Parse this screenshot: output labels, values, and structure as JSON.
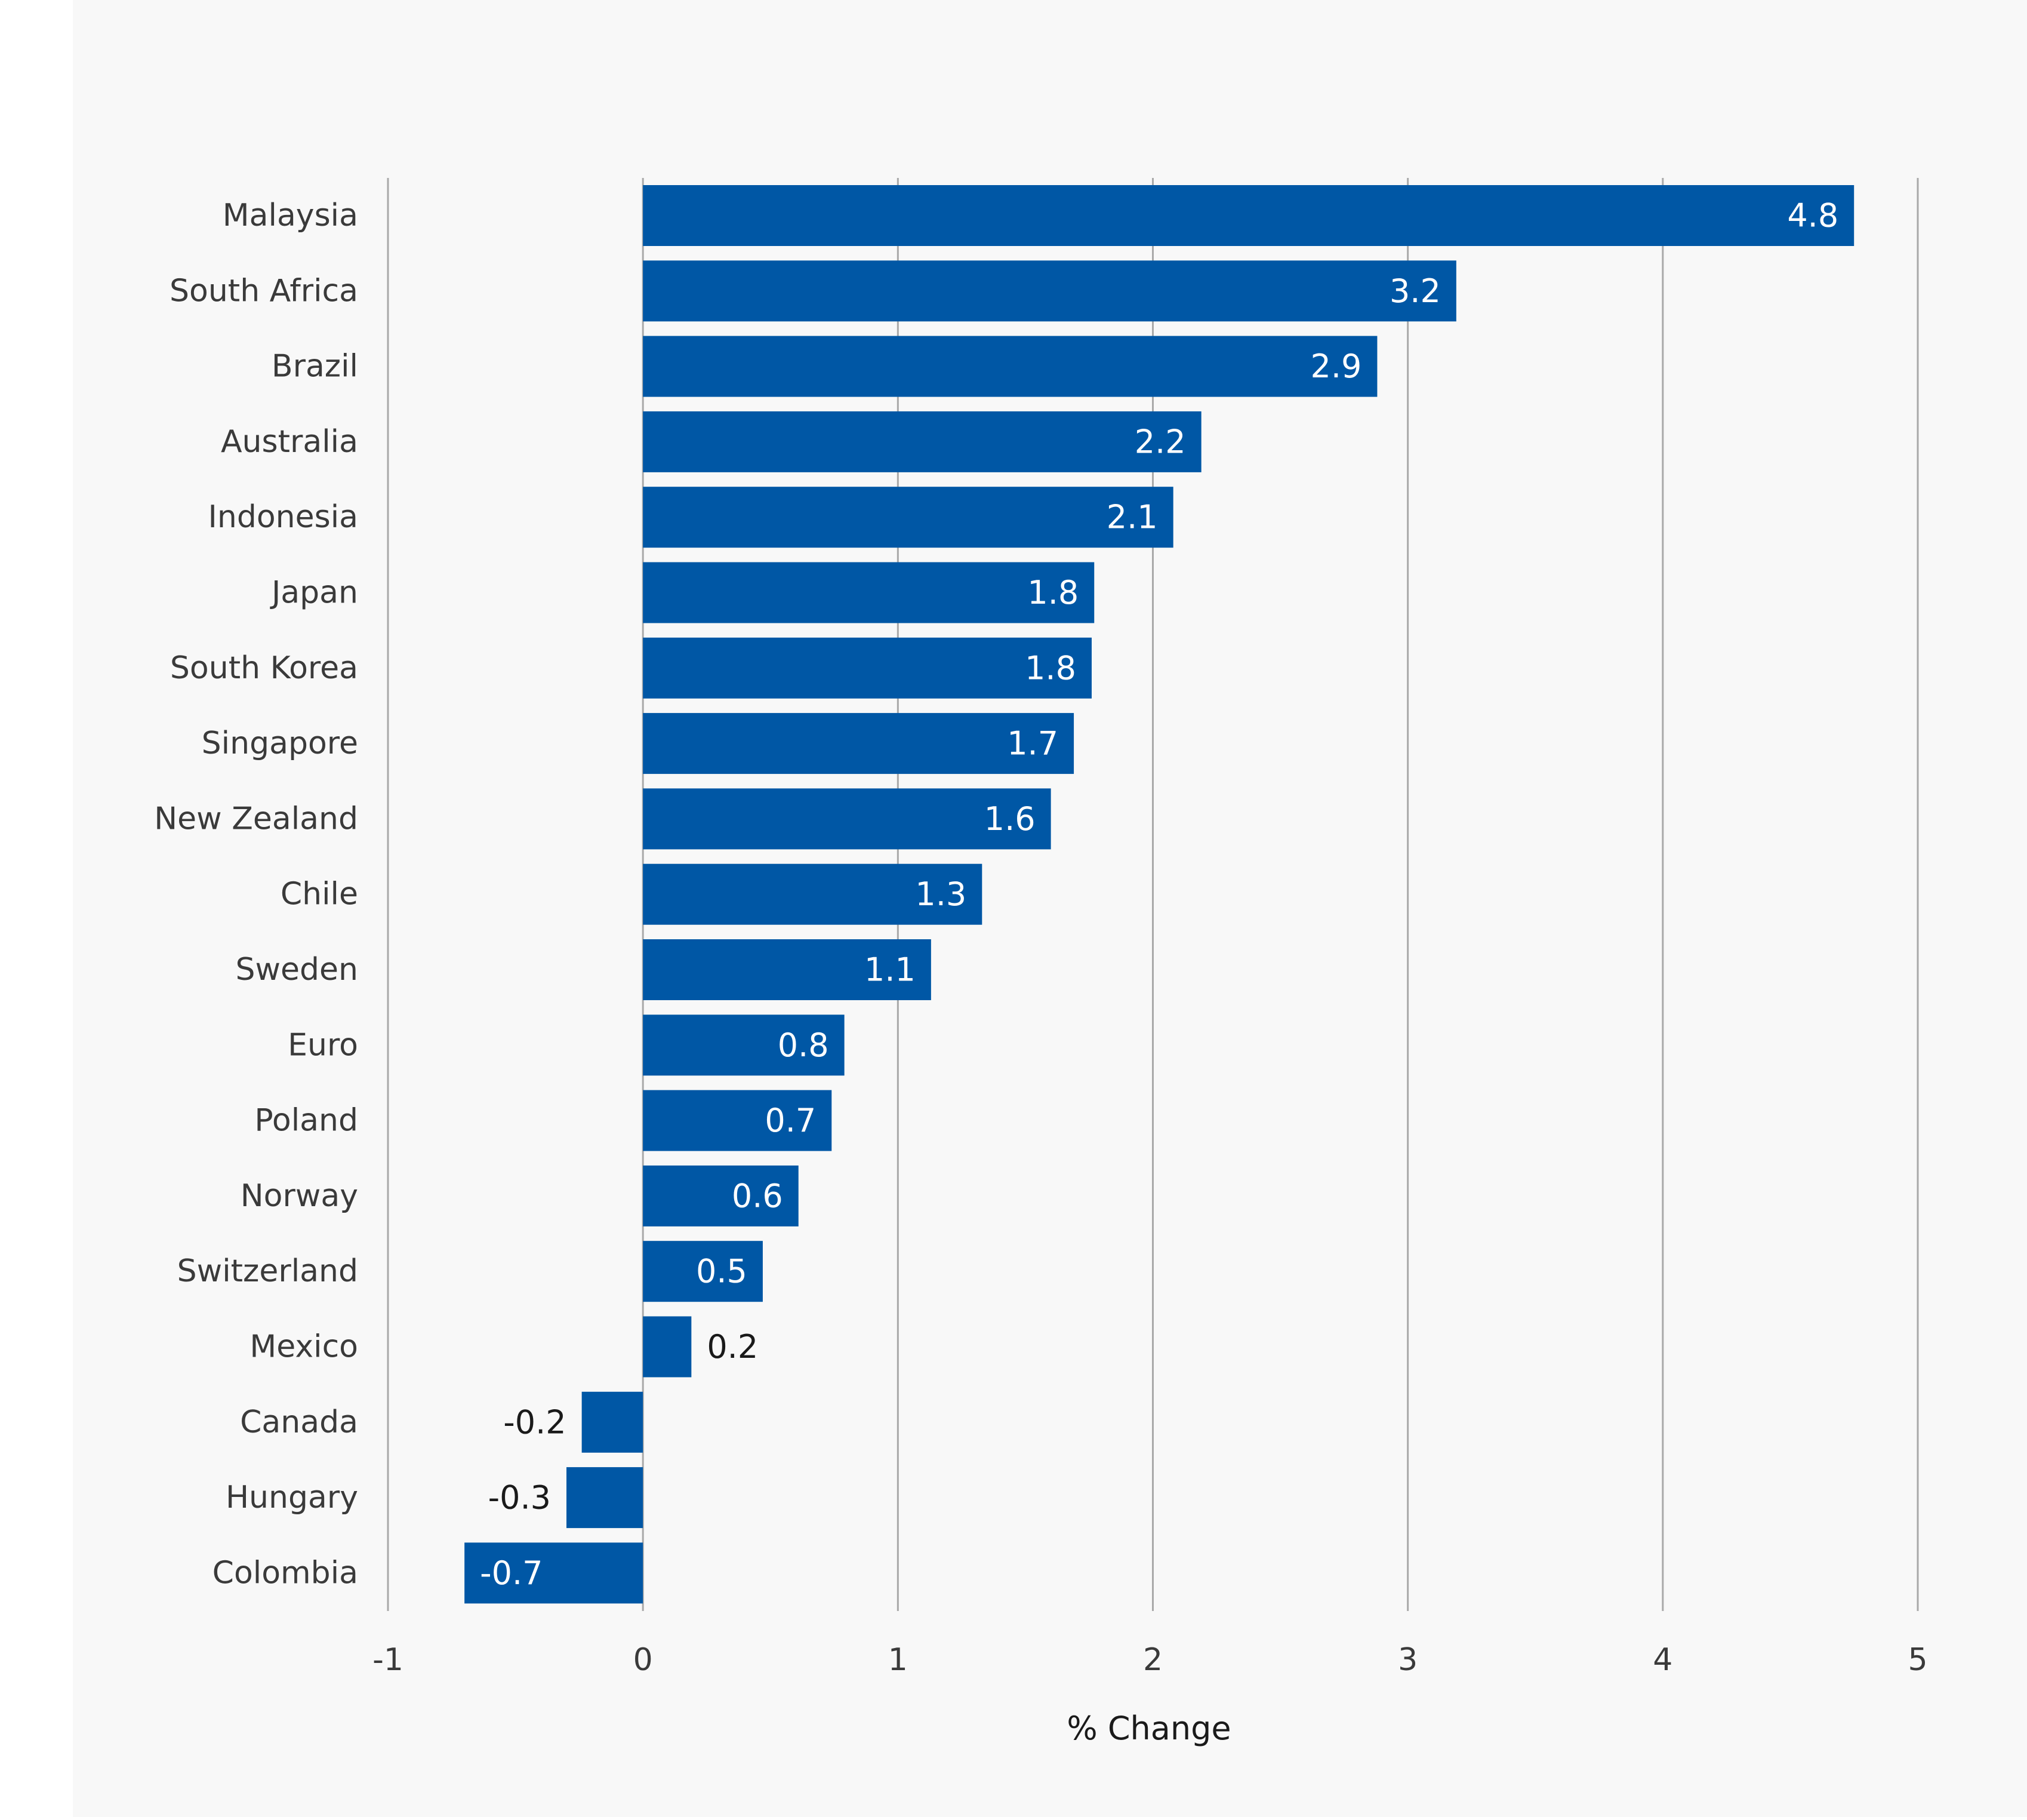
{
  "chart_data": {
    "type": "bar",
    "orientation": "horizontal",
    "categories": [
      "Malaysia",
      "South Africa",
      "Brazil",
      "Australia",
      "Indonesia",
      "Japan",
      "South Korea",
      "Singapore",
      "New Zealand",
      "Chile",
      "Sweden",
      "Euro",
      "Poland",
      "Norway",
      "Switzerland",
      "Mexico",
      "Canada",
      "Hungary",
      "Colombia"
    ],
    "values": [
      4.75,
      3.19,
      2.88,
      2.19,
      2.08,
      1.77,
      1.76,
      1.69,
      1.6,
      1.33,
      1.13,
      0.79,
      0.74,
      0.61,
      0.47,
      0.19,
      -0.24,
      -0.3,
      -0.7
    ],
    "value_labels": [
      "4.8",
      "3.2",
      "2.9",
      "2.2",
      "2.1",
      "1.8",
      "1.8",
      "1.7",
      "1.6",
      "1.3",
      "1.1",
      "0.8",
      "0.7",
      "0.6",
      "0.5",
      "0.2",
      "-0.2",
      "-0.3",
      "-0.7"
    ],
    "title": "",
    "xlabel": "% Change",
    "ylabel": "",
    "xlim": [
      -1,
      5
    ],
    "x_ticks": [
      -1,
      0,
      1,
      2,
      3,
      4,
      5
    ],
    "grid": "vertical",
    "legend": "none",
    "colors": {
      "bar": "#0057a5",
      "background": "#f8f8f8",
      "grid": "#a9a9a9",
      "label_text": "#3a3a3a",
      "inside_label": "#ffffff",
      "outside_label": "#1a1a1a"
    }
  }
}
